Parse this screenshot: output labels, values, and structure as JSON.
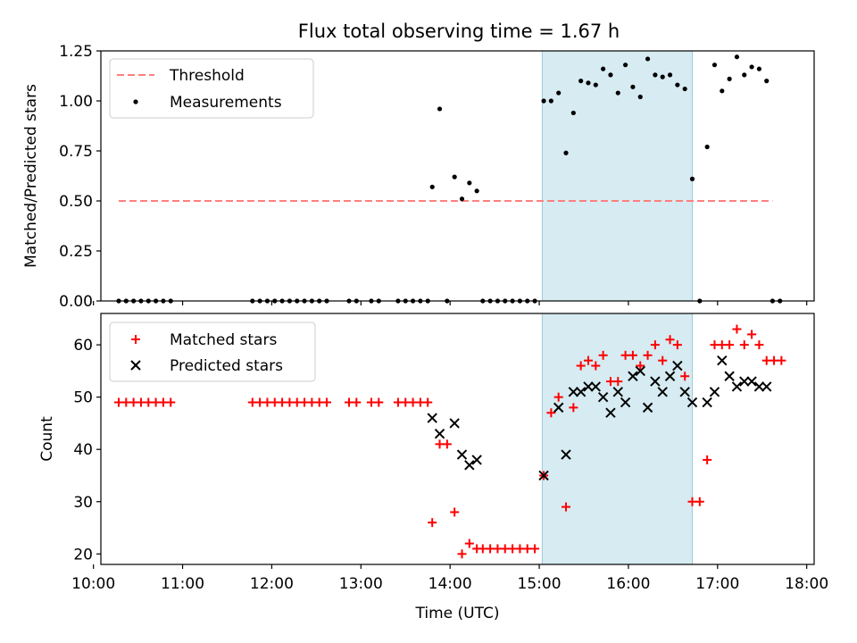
{
  "title": "Flux total observing time = 1.67 h",
  "colors": {
    "threshold": "#ff7f7f",
    "measurement": "#000000",
    "matched": "#ff0000",
    "predicted": "#000000",
    "highlight": "#add8e6"
  },
  "chart_data": [
    {
      "type": "scatter",
      "ylabel": "Matched/Predicted stars",
      "xlim": [
        "10:05",
        "18:05"
      ],
      "ylim": [
        0,
        1.25
      ],
      "yticks": [
        "0.00",
        "0.25",
        "0.50",
        "0.75",
        "1.00",
        "1.25"
      ],
      "legend_position": "top-left",
      "highlight_span": [
        "15:02",
        "16:43"
      ],
      "threshold": {
        "name": "Threshold",
        "y": 0.5,
        "x_range": [
          "10:17",
          "17:37"
        ]
      },
      "series": [
        {
          "name": "Measurements",
          "points": [
            [
              "10:17",
              0
            ],
            [
              "10:22",
              0
            ],
            [
              "10:27",
              0
            ],
            [
              "10:32",
              0
            ],
            [
              "10:37",
              0
            ],
            [
              "10:42",
              0
            ],
            [
              "10:47",
              0
            ],
            [
              "10:52",
              0
            ],
            [
              "11:47",
              0
            ],
            [
              "11:52",
              0
            ],
            [
              "11:57",
              0
            ],
            [
              "12:02",
              0
            ],
            [
              "12:07",
              0
            ],
            [
              "12:12",
              0
            ],
            [
              "12:17",
              0
            ],
            [
              "12:22",
              0
            ],
            [
              "12:27",
              0
            ],
            [
              "12:32",
              0
            ],
            [
              "12:37",
              0
            ],
            [
              "12:52",
              0
            ],
            [
              "12:57",
              0
            ],
            [
              "13:07",
              0
            ],
            [
              "13:12",
              0
            ],
            [
              "13:25",
              0
            ],
            [
              "13:30",
              0
            ],
            [
              "13:35",
              0
            ],
            [
              "13:40",
              0
            ],
            [
              "13:45",
              0
            ],
            [
              "13:48",
              0.57
            ],
            [
              "13:53",
              0.96
            ],
            [
              "13:58",
              0
            ],
            [
              "14:03",
              0.62
            ],
            [
              "14:08",
              0.51
            ],
            [
              "14:13",
              0.59
            ],
            [
              "14:18",
              0.55
            ],
            [
              "14:22",
              0
            ],
            [
              "14:27",
              0
            ],
            [
              "14:32",
              0
            ],
            [
              "14:37",
              0
            ],
            [
              "14:42",
              0
            ],
            [
              "14:47",
              0
            ],
            [
              "14:52",
              0
            ],
            [
              "14:57",
              0
            ],
            [
              "15:03",
              1.0
            ],
            [
              "15:08",
              1.0
            ],
            [
              "15:13",
              1.04
            ],
            [
              "15:18",
              0.74
            ],
            [
              "15:23",
              0.94
            ],
            [
              "15:28",
              1.1
            ],
            [
              "15:33",
              1.09
            ],
            [
              "15:38",
              1.08
            ],
            [
              "15:43",
              1.16
            ],
            [
              "15:48",
              1.13
            ],
            [
              "15:53",
              1.04
            ],
            [
              "15:58",
              1.18
            ],
            [
              "16:03",
              1.07
            ],
            [
              "16:08",
              1.02
            ],
            [
              "16:13",
              1.21
            ],
            [
              "16:18",
              1.13
            ],
            [
              "16:23",
              1.12
            ],
            [
              "16:28",
              1.13
            ],
            [
              "16:33",
              1.08
            ],
            [
              "16:38",
              1.06
            ],
            [
              "16:43",
              0.61
            ],
            [
              "16:48",
              0
            ],
            [
              "16:53",
              0.77
            ],
            [
              "16:58",
              1.18
            ],
            [
              "17:03",
              1.05
            ],
            [
              "17:08",
              1.11
            ],
            [
              "17:13",
              1.22
            ],
            [
              "17:18",
              1.13
            ],
            [
              "17:23",
              1.17
            ],
            [
              "17:28",
              1.16
            ],
            [
              "17:33",
              1.1
            ],
            [
              "17:37",
              0
            ],
            [
              "17:42",
              0
            ]
          ]
        }
      ]
    },
    {
      "type": "scatter",
      "xlabel": "Time (UTC)",
      "ylabel": "Count",
      "xlim": [
        "10:05",
        "18:05"
      ],
      "ylim": [
        18,
        66
      ],
      "yticks": [
        "20",
        "30",
        "40",
        "50",
        "60"
      ],
      "xticks": [
        "10:00",
        "11:00",
        "12:00",
        "13:00",
        "14:00",
        "15:00",
        "16:00",
        "17:00",
        "18:00"
      ],
      "legend_position": "top-left",
      "highlight_span": [
        "15:02",
        "16:43"
      ],
      "series": [
        {
          "name": "Matched stars",
          "marker": "plus",
          "points": [
            [
              "10:17",
              49
            ],
            [
              "10:22",
              49
            ],
            [
              "10:27",
              49
            ],
            [
              "10:32",
              49
            ],
            [
              "10:37",
              49
            ],
            [
              "10:42",
              49
            ],
            [
              "10:47",
              49
            ],
            [
              "10:52",
              49
            ],
            [
              "11:47",
              49
            ],
            [
              "11:52",
              49
            ],
            [
              "11:57",
              49
            ],
            [
              "12:02",
              49
            ],
            [
              "12:07",
              49
            ],
            [
              "12:12",
              49
            ],
            [
              "12:17",
              49
            ],
            [
              "12:22",
              49
            ],
            [
              "12:27",
              49
            ],
            [
              "12:32",
              49
            ],
            [
              "12:37",
              49
            ],
            [
              "12:52",
              49
            ],
            [
              "12:57",
              49
            ],
            [
              "13:07",
              49
            ],
            [
              "13:12",
              49
            ],
            [
              "13:25",
              49
            ],
            [
              "13:30",
              49
            ],
            [
              "13:35",
              49
            ],
            [
              "13:40",
              49
            ],
            [
              "13:45",
              49
            ],
            [
              "13:48",
              26
            ],
            [
              "13:53",
              41
            ],
            [
              "13:58",
              41
            ],
            [
              "14:03",
              28
            ],
            [
              "14:08",
              20
            ],
            [
              "14:13",
              22
            ],
            [
              "14:18",
              21
            ],
            [
              "14:22",
              21
            ],
            [
              "14:27",
              21
            ],
            [
              "14:32",
              21
            ],
            [
              "14:37",
              21
            ],
            [
              "14:42",
              21
            ],
            [
              "14:47",
              21
            ],
            [
              "14:52",
              21
            ],
            [
              "14:57",
              21
            ],
            [
              "15:03",
              35
            ],
            [
              "15:08",
              47
            ],
            [
              "15:13",
              50
            ],
            [
              "15:18",
              29
            ],
            [
              "15:23",
              48
            ],
            [
              "15:28",
              56
            ],
            [
              "15:33",
              57
            ],
            [
              "15:38",
              56
            ],
            [
              "15:43",
              58
            ],
            [
              "15:48",
              53
            ],
            [
              "15:53",
              53
            ],
            [
              "15:58",
              58
            ],
            [
              "16:03",
              58
            ],
            [
              "16:08",
              56
            ],
            [
              "16:13",
              58
            ],
            [
              "16:18",
              60
            ],
            [
              "16:23",
              57
            ],
            [
              "16:28",
              61
            ],
            [
              "16:33",
              60
            ],
            [
              "16:38",
              54
            ],
            [
              "16:43",
              30
            ],
            [
              "16:48",
              30
            ],
            [
              "16:53",
              38
            ],
            [
              "16:58",
              60
            ],
            [
              "17:03",
              60
            ],
            [
              "17:08",
              60
            ],
            [
              "17:13",
              63
            ],
            [
              "17:18",
              60
            ],
            [
              "17:23",
              62
            ],
            [
              "17:28",
              60
            ],
            [
              "17:33",
              57
            ],
            [
              "17:38",
              57
            ],
            [
              "17:43",
              57
            ]
          ]
        },
        {
          "name": "Predicted stars",
          "marker": "x",
          "points": [
            [
              "13:48",
              46
            ],
            [
              "13:53",
              43
            ],
            [
              "14:03",
              45
            ],
            [
              "14:08",
              39
            ],
            [
              "14:13",
              37
            ],
            [
              "14:18",
              38
            ],
            [
              "15:03",
              35
            ],
            [
              "15:13",
              48
            ],
            [
              "15:18",
              39
            ],
            [
              "15:23",
              51
            ],
            [
              "15:28",
              51
            ],
            [
              "15:33",
              52
            ],
            [
              "15:38",
              52
            ],
            [
              "15:43",
              50
            ],
            [
              "15:48",
              47
            ],
            [
              "15:53",
              51
            ],
            [
              "15:58",
              49
            ],
            [
              "16:03",
              54
            ],
            [
              "16:08",
              55
            ],
            [
              "16:13",
              48
            ],
            [
              "16:18",
              53
            ],
            [
              "16:23",
              51
            ],
            [
              "16:28",
              54
            ],
            [
              "16:33",
              56
            ],
            [
              "16:38",
              51
            ],
            [
              "16:43",
              49
            ],
            [
              "16:53",
              49
            ],
            [
              "16:58",
              51
            ],
            [
              "17:03",
              57
            ],
            [
              "17:08",
              54
            ],
            [
              "17:13",
              52
            ],
            [
              "17:18",
              53
            ],
            [
              "17:23",
              53
            ],
            [
              "17:28",
              52
            ],
            [
              "17:33",
              52
            ]
          ]
        }
      ]
    }
  ]
}
